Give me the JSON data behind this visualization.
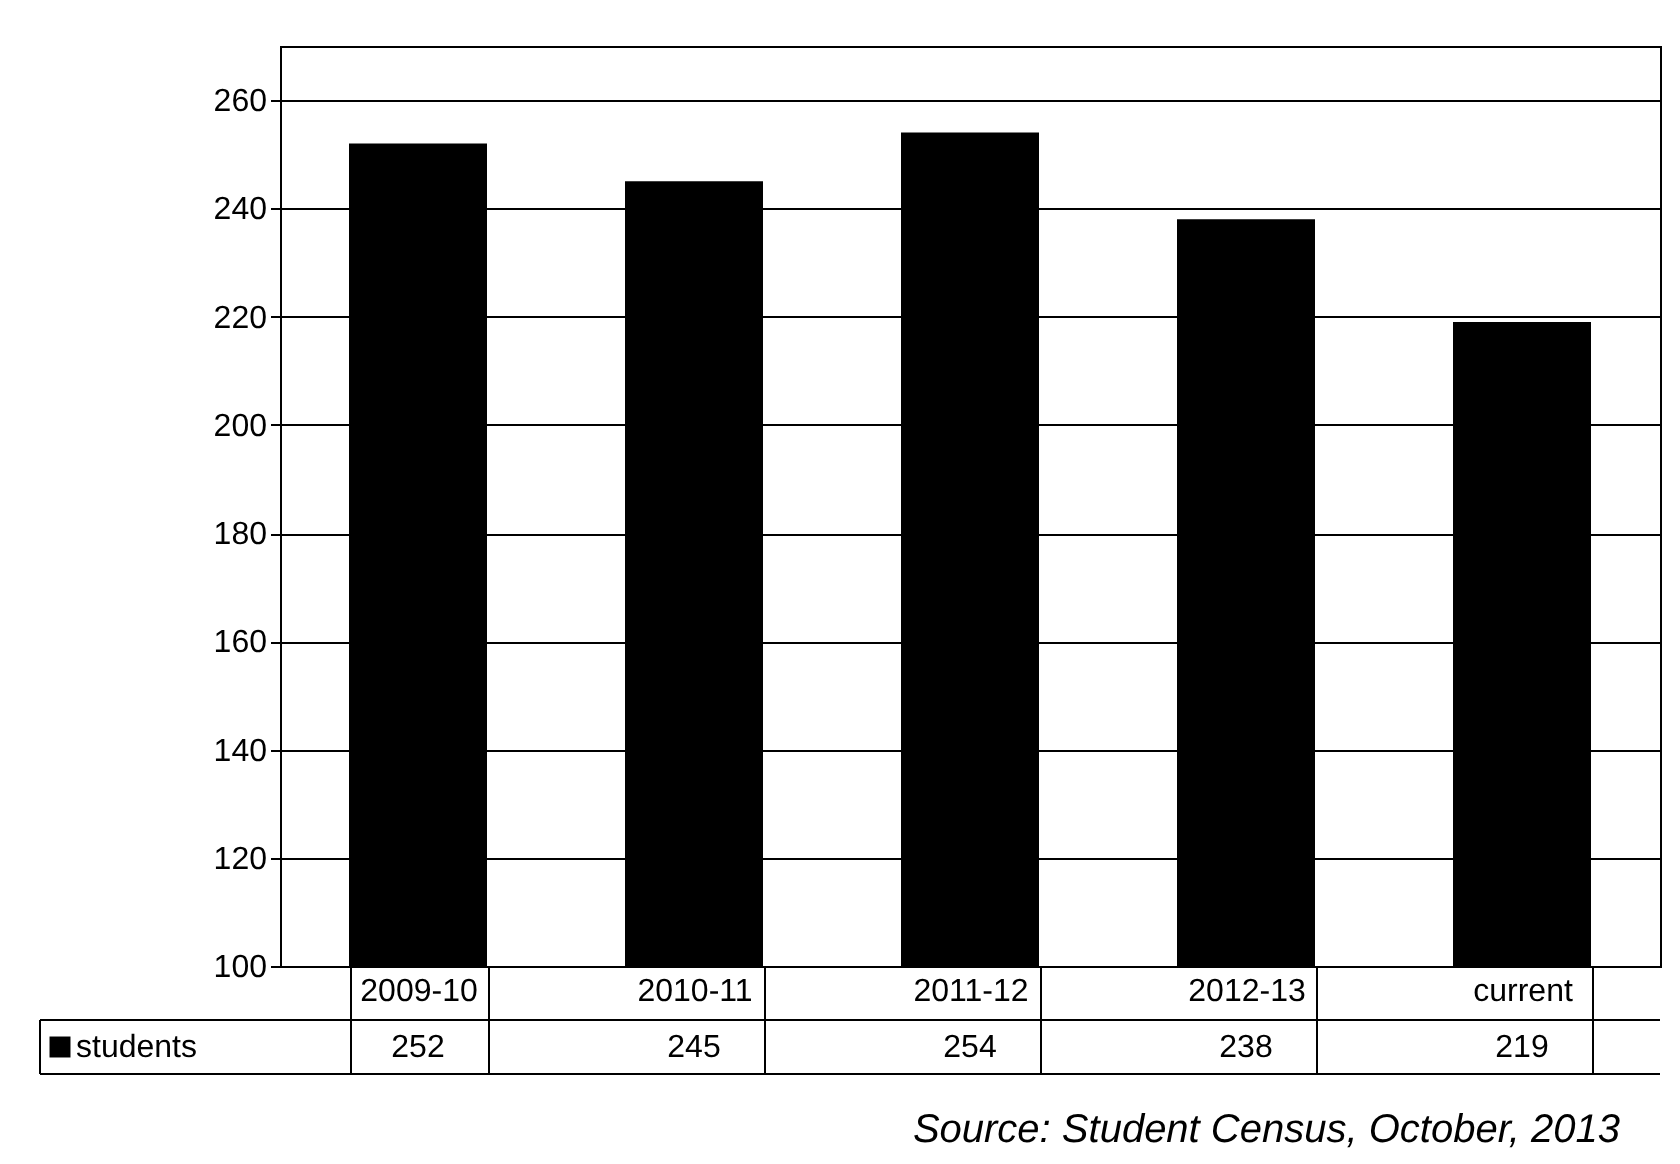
{
  "chart_data": {
    "type": "bar",
    "categories": [
      "2009-10",
      "2010-11",
      "2011-12",
      "2012-13",
      "current"
    ],
    "series": [
      {
        "name": "students",
        "color": "#000000",
        "values": [
          252,
          245,
          254,
          238,
          219
        ]
      }
    ],
    "ylim": [
      100,
      270
    ],
    "yticks": [
      100,
      120,
      140,
      160,
      180,
      200,
      220,
      240,
      260
    ],
    "grid": "y",
    "legend": "bottom left",
    "data_labels": true,
    "annotations": [
      "Source: Student Census, October, 2013"
    ]
  }
}
